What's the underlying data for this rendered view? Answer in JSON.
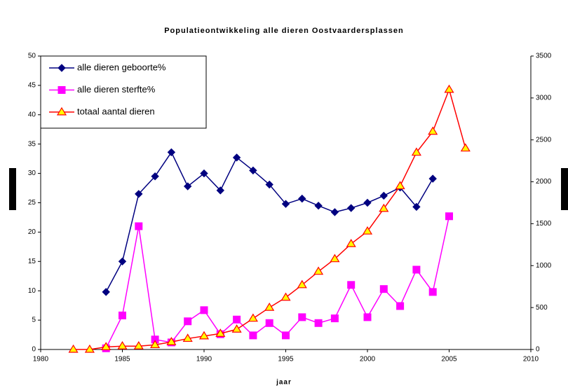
{
  "chart_data": {
    "type": "line",
    "title": "Populatieontwikkeling alle dieren Oostvaardersplassen",
    "x_label": "jaar",
    "x": [
      1982,
      1983,
      1984,
      1985,
      1986,
      1987,
      1988,
      1989,
      1990,
      1991,
      1992,
      1993,
      1994,
      1995,
      1996,
      1997,
      1998,
      1999,
      2000,
      2001,
      2002,
      2003,
      2004,
      2005,
      2006
    ],
    "xlim": [
      1980,
      2010
    ],
    "xticks": [
      1980,
      1985,
      1990,
      1995,
      2000,
      2005,
      2010
    ],
    "ylim": [
      0,
      50
    ],
    "yticks": [
      0,
      5,
      10,
      15,
      20,
      25,
      30,
      35,
      40,
      45,
      50
    ],
    "y2lim": [
      0,
      3500
    ],
    "y2ticks": [
      0,
      500,
      1000,
      1500,
      2000,
      2500,
      3000,
      3500
    ],
    "legend": "upper left",
    "series": [
      {
        "name": "alle dieren geboorte%",
        "color": "#000080",
        "marker": "diamond",
        "values": [
          null,
          null,
          9.8,
          15,
          26.5,
          29.5,
          33.6,
          27.8,
          30,
          27.1,
          32.7,
          30.5,
          28.1,
          24.8,
          25.7,
          24.5,
          23.4,
          24.1,
          25,
          26.2,
          27.6,
          24.3,
          29.1,
          null,
          null
        ]
      },
      {
        "name": "alle dieren sterfte%",
        "color": "#ff00ff",
        "marker": "square",
        "values": [
          null,
          null,
          0.2,
          5.8,
          21,
          1.7,
          1.2,
          4.8,
          6.7,
          2.6,
          5.1,
          2.4,
          4.5,
          2.4,
          5.5,
          4.5,
          5.3,
          11,
          5.5,
          10.3,
          7.4,
          13.6,
          9.8,
          22.7,
          null
        ]
      },
      {
        "name": "totaal aantal dieren",
        "color": "#ff0000",
        "marker": "triangle",
        "axis": "y2",
        "values": [
          0,
          0,
          30,
          40,
          40,
          55,
          90,
          130,
          160,
          190,
          240,
          370,
          500,
          620,
          770,
          930,
          1080,
          1260,
          1410,
          1680,
          1950,
          2350,
          2600,
          3100,
          2400
        ]
      }
    ]
  }
}
